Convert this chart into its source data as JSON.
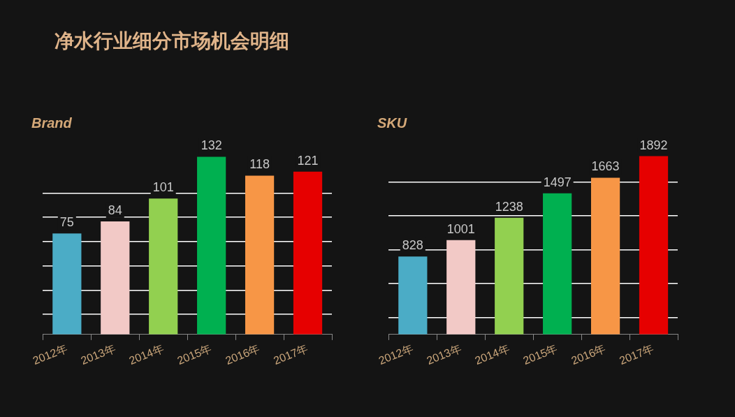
{
  "chart_data": [
    {
      "type": "other",
      "title": "净水行业细分市场机会明细"
    },
    {
      "type": "bar",
      "title": "Brand",
      "categories": [
        "2012年",
        "2013年",
        "2014年",
        "2015年",
        "2016年",
        "2017年"
      ],
      "values": [
        75,
        84,
        101,
        132,
        118,
        121
      ],
      "colors": [
        "#4bacc6",
        "#f2c9c6",
        "#92d050",
        "#00b050",
        "#f79646",
        "#e60000"
      ],
      "yticks": [
        {
          "value": 15,
          "label": null
        },
        {
          "value": 33,
          "label": null
        },
        {
          "value": 51,
          "label": null
        },
        {
          "value": 69,
          "label": null
        },
        {
          "value": 87,
          "label": null
        },
        {
          "value": 105,
          "label": null
        }
      ],
      "grid": "y",
      "tick_labels": "x",
      "data_labels": true,
      "legend": false
    },
    {
      "type": "bar",
      "title": "SKU",
      "categories": [
        "2012年",
        "2013年",
        "2014年",
        "2015年",
        "2016年",
        "2017年"
      ],
      "values": [
        828,
        1001,
        1238,
        1497,
        1663,
        1892
      ],
      "colors": [
        "#4bacc6",
        "#f2c9c6",
        "#92d050",
        "#00b050",
        "#f79646",
        "#e60000"
      ],
      "yticks": [
        {
          "value": 180,
          "label": null
        },
        {
          "value": 540,
          "label": null
        },
        {
          "value": 900,
          "label": null
        },
        {
          "value": 1260,
          "label": null
        },
        {
          "value": 1620,
          "label": null
        }
      ],
      "grid": "y",
      "tick_labels": "x",
      "data_labels": true,
      "legend": false
    }
  ]
}
